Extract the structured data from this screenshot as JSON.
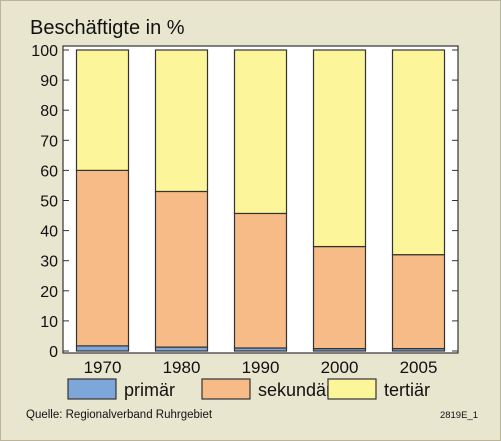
{
  "chart_data": {
    "type": "bar",
    "stacked": true,
    "title": "Beschäftigte in %",
    "categories": [
      "1970",
      "1980",
      "1990",
      "2000",
      "2005"
    ],
    "series": [
      {
        "name": "primär",
        "values": [
          1.7,
          1.3,
          1.0,
          0.8,
          0.8
        ],
        "color": "#7fa6d9"
      },
      {
        "name": "sekundär",
        "values": [
          58.3,
          51.7,
          44.7,
          33.9,
          31.2
        ],
        "color": "#f6bb86"
      },
      {
        "name": "tertiär",
        "values": [
          40.0,
          47.0,
          54.3,
          65.3,
          68.0
        ],
        "color": "#fcf59a"
      }
    ],
    "yticks": [
      "0",
      "10",
      "20",
      "30",
      "40",
      "50",
      "60",
      "70",
      "80",
      "90",
      "100"
    ],
    "ylim": [
      0,
      100
    ],
    "xlabel": "",
    "ylabel": "",
    "legend_position": "bottom",
    "grid": false
  },
  "source": "Quelle: Regionalverband Ruhrgebiet",
  "figure_id": "2819E_1"
}
